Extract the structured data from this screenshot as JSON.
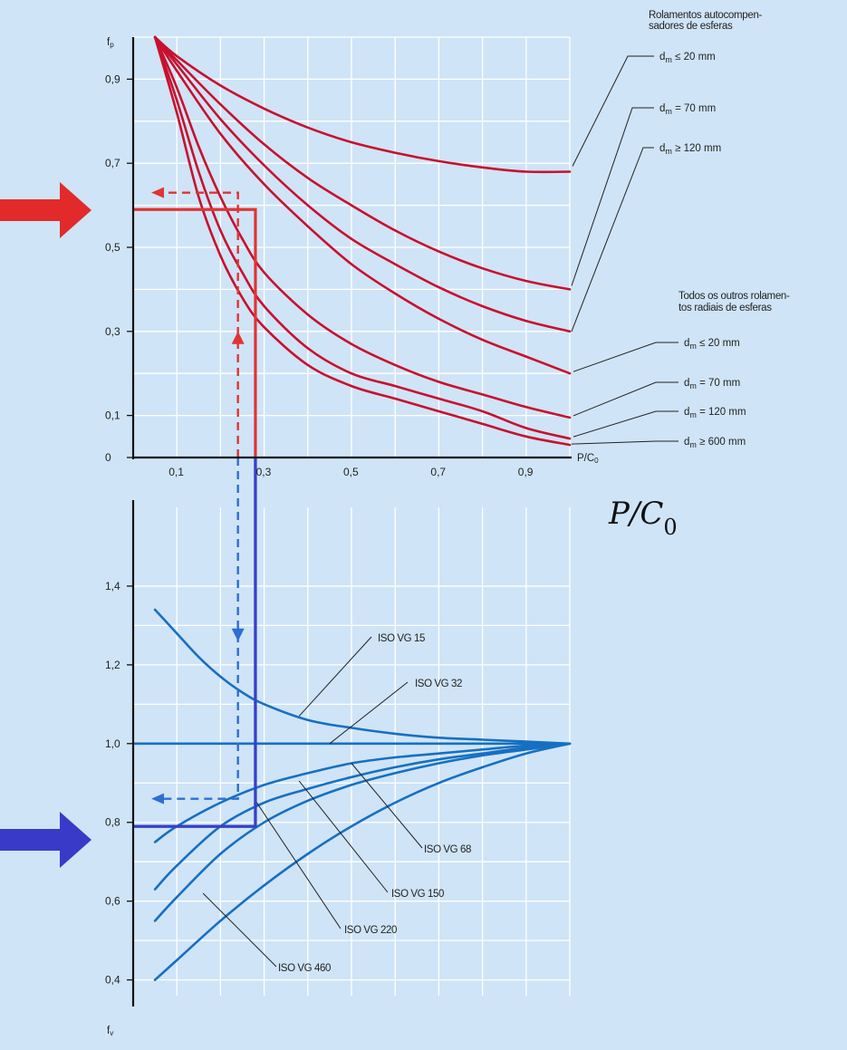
{
  "colors": {
    "background": "#cfe4f6",
    "red_curves": "#c8102e",
    "blue_curves": "#1670c2",
    "red_marker": "#e22a2a",
    "blue_marker": "#3a3ac8",
    "path_red": "#e03434",
    "path_blue": "#2c6fd4"
  },
  "icons": {
    "left_red_arrow": "arrow-right-icon",
    "left_blue_arrow": "arrow-right-icon"
  },
  "big_axis_label": {
    "main": "P/C",
    "sub": "0"
  },
  "chart_data": [
    {
      "type": "line",
      "xlabel": {
        "main": "P/C",
        "sub": "0"
      },
      "ylabel": {
        "main": "f",
        "sub": "p"
      },
      "xlim": [
        0,
        1.0
      ],
      "ylim": [
        0,
        1.0
      ],
      "x_ticks": [
        0.1,
        0.3,
        0.5,
        0.7,
        0.9
      ],
      "x_tick_labels": [
        "0,1",
        "0,3",
        "0,5",
        "0,7",
        "0,9"
      ],
      "y_ticks": [
        0,
        0.1,
        0.3,
        0.5,
        0.7,
        0.9
      ],
      "y_tick_labels": [
        "0",
        "0,1",
        "0,3",
        "0,5",
        "0,7",
        "0,9"
      ],
      "grid": true,
      "group_labels": [
        {
          "lines": [
            "Rolamentos autocompen-",
            "sadores de esferas"
          ]
        },
        {
          "lines": [
            "Todos os outros rolamen-",
            "tos radiais de esferas"
          ]
        }
      ],
      "series": [
        {
          "name": "d_m ≤ 20 mm",
          "label_main": "d",
          "label_sub": "m",
          "label_tail": " ≤ 20 mm",
          "group": 0,
          "x": [
            0.05,
            0.1,
            0.2,
            0.3,
            0.4,
            0.5,
            0.6,
            0.7,
            0.8,
            0.9,
            1.0
          ],
          "y": [
            1.0,
            0.955,
            0.885,
            0.83,
            0.785,
            0.75,
            0.725,
            0.705,
            0.69,
            0.68,
            0.68
          ]
        },
        {
          "name": "d_m = 70 mm",
          "label_main": "d",
          "label_sub": "m",
          "label_tail": " = 70 mm",
          "group": 0,
          "x": [
            0.05,
            0.1,
            0.2,
            0.3,
            0.4,
            0.5,
            0.6,
            0.7,
            0.8,
            0.9,
            1.0
          ],
          "y": [
            1.0,
            0.945,
            0.84,
            0.745,
            0.665,
            0.6,
            0.54,
            0.49,
            0.45,
            0.42,
            0.4
          ]
        },
        {
          "name": "d_m ≥ 120 mm",
          "label_main": "d",
          "label_sub": "m",
          "label_tail": " ≥ 120 mm",
          "group": 0,
          "x": [
            0.05,
            0.1,
            0.2,
            0.3,
            0.4,
            0.5,
            0.6,
            0.7,
            0.8,
            0.9,
            1.0
          ],
          "y": [
            1.0,
            0.935,
            0.805,
            0.695,
            0.6,
            0.52,
            0.46,
            0.405,
            0.36,
            0.325,
            0.3
          ]
        },
        {
          "name": "d_m ≤ 20 mm",
          "label_main": "d",
          "label_sub": "m",
          "label_tail": " ≤ 20 mm",
          "group": 1,
          "x": [
            0.05,
            0.1,
            0.2,
            0.3,
            0.4,
            0.5,
            0.6,
            0.7,
            0.8,
            0.9,
            1.0
          ],
          "y": [
            1.0,
            0.92,
            0.77,
            0.65,
            0.55,
            0.46,
            0.39,
            0.33,
            0.28,
            0.24,
            0.2
          ]
        },
        {
          "name": "d_m = 70 mm",
          "label_main": "d",
          "label_sub": "m",
          "label_tail": " = 70 mm",
          "group": 1,
          "x": [
            0.05,
            0.1,
            0.15,
            0.2,
            0.25,
            0.3,
            0.4,
            0.5,
            0.6,
            0.7,
            0.8,
            0.9,
            1.0
          ],
          "y": [
            1.0,
            0.88,
            0.74,
            0.62,
            0.52,
            0.44,
            0.34,
            0.27,
            0.22,
            0.18,
            0.15,
            0.12,
            0.095
          ]
        },
        {
          "name": "d_m = 120 mm",
          "label_main": "d",
          "label_sub": "m",
          "label_tail": " = 120 mm",
          "group": 1,
          "x": [
            0.05,
            0.1,
            0.15,
            0.2,
            0.25,
            0.3,
            0.4,
            0.5,
            0.6,
            0.7,
            0.8,
            0.9,
            1.0
          ],
          "y": [
            1.0,
            0.85,
            0.68,
            0.54,
            0.44,
            0.36,
            0.26,
            0.2,
            0.17,
            0.14,
            0.11,
            0.07,
            0.045
          ]
        },
        {
          "name": "d_m ≥ 600 mm",
          "label_main": "d",
          "label_sub": "m",
          "label_tail": " ≥ 600 mm",
          "group": 1,
          "x": [
            0.05,
            0.1,
            0.15,
            0.2,
            0.25,
            0.3,
            0.4,
            0.5,
            0.6,
            0.7,
            0.8,
            0.9,
            1.0
          ],
          "y": [
            1.0,
            0.82,
            0.62,
            0.48,
            0.38,
            0.31,
            0.22,
            0.17,
            0.14,
            0.11,
            0.08,
            0.05,
            0.03
          ]
        }
      ],
      "example_path": {
        "x_value": 0.28,
        "fp_value": 0.59,
        "dashed_x_value": 0.24,
        "dashed_fp_value": 0.63
      }
    },
    {
      "type": "line",
      "xlim": [
        0,
        1.0
      ],
      "ylim": [
        0.36,
        1.6
      ],
      "ylabel": {
        "main": "f",
        "sub": "v"
      },
      "y_ticks": [
        0.4,
        0.6,
        0.8,
        1.0,
        1.2,
        1.4
      ],
      "y_tick_labels": [
        "0,4",
        "0,6",
        "0,8",
        "1,0",
        "1,2",
        "1,4"
      ],
      "grid": true,
      "series": [
        {
          "name": "ISO VG 15",
          "x": [
            0.05,
            0.1,
            0.15,
            0.2,
            0.25,
            0.3,
            0.4,
            0.5,
            0.6,
            0.7,
            0.8,
            0.9,
            1.0
          ],
          "y": [
            1.34,
            1.28,
            1.22,
            1.17,
            1.13,
            1.1,
            1.06,
            1.04,
            1.025,
            1.015,
            1.01,
            1.005,
            1.0
          ]
        },
        {
          "name": "ISO VG 32",
          "x": [
            0.0,
            0.5,
            1.0
          ],
          "y": [
            1.0,
            1.0,
            1.0
          ]
        },
        {
          "name": "ISO VG 68",
          "x": [
            0.05,
            0.1,
            0.2,
            0.3,
            0.4,
            0.5,
            0.6,
            0.7,
            0.8,
            0.9,
            1.0
          ],
          "y": [
            0.75,
            0.79,
            0.85,
            0.895,
            0.925,
            0.95,
            0.965,
            0.975,
            0.985,
            0.995,
            1.0
          ]
        },
        {
          "name": "ISO VG 150",
          "x": [
            0.05,
            0.1,
            0.2,
            0.3,
            0.4,
            0.5,
            0.6,
            0.7,
            0.8,
            0.9,
            1.0
          ],
          "y": [
            0.63,
            0.69,
            0.79,
            0.85,
            0.885,
            0.915,
            0.94,
            0.96,
            0.975,
            0.99,
            1.0
          ]
        },
        {
          "name": "ISO VG 220",
          "x": [
            0.05,
            0.1,
            0.2,
            0.3,
            0.4,
            0.5,
            0.6,
            0.7,
            0.8,
            0.9,
            1.0
          ],
          "y": [
            0.55,
            0.61,
            0.72,
            0.8,
            0.855,
            0.895,
            0.925,
            0.95,
            0.97,
            0.985,
            1.0
          ]
        },
        {
          "name": "ISO VG 460",
          "x": [
            0.05,
            0.1,
            0.2,
            0.3,
            0.4,
            0.5,
            0.6,
            0.7,
            0.8,
            0.9,
            1.0
          ],
          "y": [
            0.4,
            0.45,
            0.55,
            0.64,
            0.72,
            0.79,
            0.85,
            0.9,
            0.94,
            0.975,
            1.0
          ]
        }
      ],
      "example_path": {
        "x_value": 0.28,
        "fv_value": 0.79,
        "dashed_x_value": 0.24,
        "dashed_fv_value": 0.86
      }
    }
  ]
}
